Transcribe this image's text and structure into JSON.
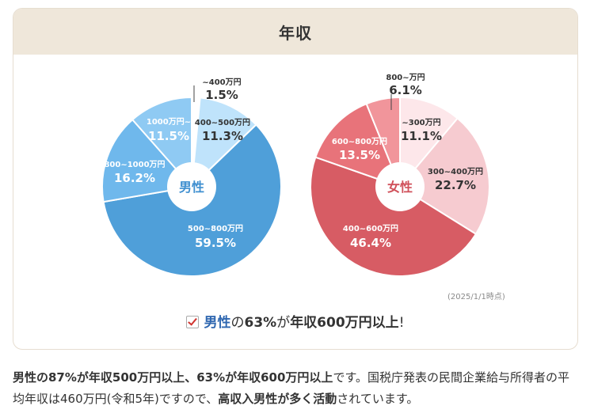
{
  "header": {
    "title": "年収"
  },
  "chart_data": [
    {
      "type": "pie",
      "center_label": "男性",
      "slices": [
        {
          "label": "~400万円",
          "value": 1.5,
          "value_label": "1.5%",
          "color": "#ffffff"
        },
        {
          "label": "400~500万円",
          "value": 11.3,
          "value_label": "11.3%",
          "color": "#bfe3fb"
        },
        {
          "label": "500~800万円",
          "value": 59.5,
          "value_label": "59.5%",
          "color": "#4f9fd9"
        },
        {
          "label": "800~1000万円",
          "value": 16.2,
          "value_label": "16.2%",
          "color": "#6fb8ec"
        },
        {
          "label": "1000万円~",
          "value": 11.5,
          "value_label": "11.5%",
          "color": "#8fcaf3"
        }
      ]
    },
    {
      "type": "pie",
      "center_label": "女性",
      "slices": [
        {
          "label": "~300万円",
          "value": 11.1,
          "value_label": "11.1%",
          "color": "#fde7ea"
        },
        {
          "label": "300~400万円",
          "value": 22.7,
          "value_label": "22.7%",
          "color": "#f6cbd0"
        },
        {
          "label": "400~600万円",
          "value": 46.4,
          "value_label": "46.4%",
          "color": "#d75c64"
        },
        {
          "label": "600~800万円",
          "value": 13.5,
          "value_label": "13.5%",
          "color": "#e8737a"
        },
        {
          "label": "800~万円",
          "value": 6.1,
          "value_label": "6.1%",
          "color": "#f1959b"
        }
      ]
    }
  ],
  "note": "(2025/1/1時点)",
  "tagline": {
    "male": "男性",
    "p1": "の",
    "pct": "63%",
    "p2": "が",
    "rest": "年収600万円以上",
    "excl": "!"
  },
  "description": {
    "b1": "男性の87%が年収500万円以上、63%が年収600万円以上",
    "t1": "です。国税庁発表の民間企業給与所得者の平均年収は460万円(令和5年)ですので、",
    "b2": "高収入男性が多く活動",
    "t2": "されています。"
  }
}
